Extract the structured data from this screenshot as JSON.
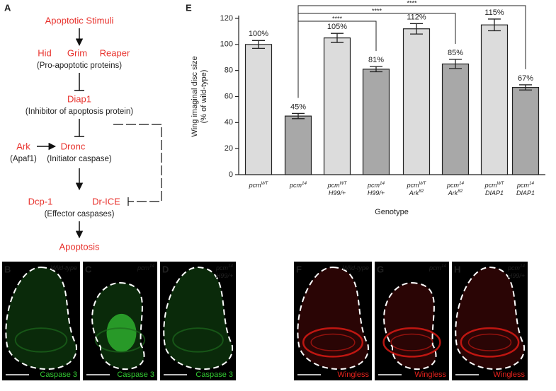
{
  "panel_a": {
    "label": "A",
    "stimuli": "Apoptotic Stimuli",
    "pro_apoptotic": [
      "Hid",
      "Grim",
      "Reaper"
    ],
    "pro_apoptotic_note": "(Pro-apoptotic proteins)",
    "diap1": "Diap1",
    "diap1_note": "(Inhibitor of apoptosis protein)",
    "ark": "Ark",
    "ark_note": "(Apaf1)",
    "dronc": "Dronc",
    "dronc_note": "(Initiator caspase)",
    "effectors": [
      "Dcp-1",
      "Dr-ICE"
    ],
    "effectors_note": "(Effector caspases)",
    "outcome": "Apoptosis"
  },
  "chart_data": {
    "type": "bar",
    "panel_label": "E",
    "y_label": [
      "Wing imaginal disc size",
      "(% of wild-type)"
    ],
    "x_label": "Genotype",
    "categories": [
      {
        "name": "pcm",
        "sup": "WT"
      },
      {
        "name": "pcm",
        "sup": "14"
      },
      {
        "name": "pcm",
        "sup": "WT",
        "line2": "H99/+"
      },
      {
        "name": "pcm",
        "sup": "14",
        "line2": "H99/+"
      },
      {
        "name": "pcm",
        "sup": "WT",
        "line2": "Ark",
        "line2_sup": "82"
      },
      {
        "name": "pcm",
        "sup": "14",
        "line2": "Ark",
        "line2_sup": "82"
      },
      {
        "name": "pcm",
        "sup": "WT",
        "line2": "DIAP1"
      },
      {
        "name": "pcm",
        "sup": "14",
        "line2": "DIAP1"
      }
    ],
    "values": [
      100,
      45,
      105,
      81,
      112,
      85,
      115,
      67
    ],
    "value_labels": [
      "100%",
      "45%",
      "105%",
      "81%",
      "112%",
      "85%",
      "115%",
      "67%"
    ],
    "errors": [
      3,
      2,
      3.5,
      2,
      4,
      3.5,
      4.5,
      2
    ],
    "colors": [
      "#dcdcdc",
      "#a8a8a8",
      "#dcdcdc",
      "#a8a8a8",
      "#dcdcdc",
      "#a8a8a8",
      "#dcdcdc",
      "#a8a8a8"
    ],
    "ylim": [
      0,
      120
    ],
    "yticks": [
      0,
      20,
      40,
      60,
      80,
      100,
      120
    ],
    "significance": [
      {
        "from": 1,
        "to": 3,
        "label": "****"
      },
      {
        "from": 1,
        "to": 5,
        "label": "****"
      },
      {
        "from": 1,
        "to": 7,
        "label": "****"
      }
    ]
  },
  "panels": [
    {
      "label": "B",
      "genotype": {
        "name": "Wild-type"
      },
      "stain": "Caspase 3",
      "color": "#33cc33"
    },
    {
      "label": "C",
      "genotype": {
        "name": "pcm",
        "sup": "14"
      },
      "stain": "Caspase 3",
      "color": "#33cc33"
    },
    {
      "label": "D",
      "genotype": {
        "name": "pcm",
        "sup": "14",
        "line2": "H99/+"
      },
      "stain": "Caspase 3",
      "color": "#33cc33"
    },
    {
      "label": "F",
      "genotype": {
        "name": "Wild-type"
      },
      "stain": "Wingless",
      "color": "#e8221d"
    },
    {
      "label": "G",
      "genotype": {
        "name": "pcm",
        "sup": "14"
      },
      "stain": "Wingless",
      "color": "#e8221d"
    },
    {
      "label": "H",
      "genotype": {
        "name": "pcm",
        "sup": "14",
        "line2": "H99/+"
      },
      "stain": "Wingless",
      "color": "#e8221d"
    }
  ]
}
